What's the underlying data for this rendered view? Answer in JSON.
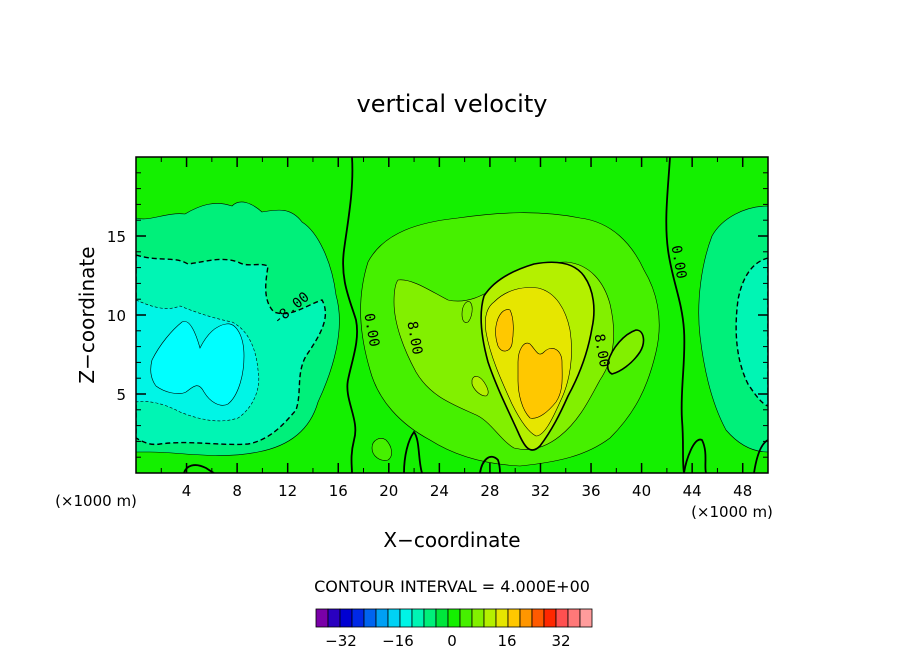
{
  "chart_data": {
    "type": "contour",
    "title": "vertical velocity",
    "xlabel": "X−coordinate",
    "ylabel": "Z−coordinate",
    "x_unit_left": "(×1000 m)",
    "x_unit_right": "(×1000 m)",
    "xlim": [
      0,
      50
    ],
    "ylim": [
      0,
      20
    ],
    "x_ticks": [
      4,
      8,
      12,
      16,
      20,
      24,
      28,
      32,
      36,
      40,
      44,
      48
    ],
    "y_ticks": [
      5,
      10,
      15
    ],
    "contour_labels": [
      {
        "text": "-8.00",
        "x": 12.5,
        "y": 10.2
      },
      {
        "text": "0.00",
        "x": 18.3,
        "y": 9.0
      },
      {
        "text": "8.00",
        "x": 21.7,
        "y": 8.5
      },
      {
        "text": "8.00",
        "x": 36.5,
        "y": 7.7
      },
      {
        "text": "0.00",
        "x": 42.6,
        "y": 13.3
      }
    ],
    "contour_interval": "CONTOUR INTERVAL = 4.000E+00",
    "colorbar": {
      "tick_labels": [
        "−32",
        "−16",
        "0",
        "16",
        "32"
      ],
      "colors": [
        "#7a00a8",
        "#2a00c0",
        "#0000d2",
        "#0028e6",
        "#0064f0",
        "#00a0f5",
        "#00d2f5",
        "#00f5e6",
        "#00f5b4",
        "#00f07a",
        "#00e63c",
        "#14f000",
        "#46f000",
        "#82f000",
        "#b4f000",
        "#e6e600",
        "#ffc800",
        "#ff9600",
        "#ff5a00",
        "#ff2800",
        "#ff5050",
        "#ff7878",
        "#ff9c9c"
      ]
    },
    "fill_levels": {
      "background": "#14f000",
      "m4": "#00f07a",
      "m8": "#00f5b4",
      "m12": "#00f5e6",
      "m16": "#00ffff",
      "p4": "#46f000",
      "p8": "#82f000",
      "p12": "#b4f000",
      "p16": "#e6e600",
      "p20": "#ffc800"
    }
  }
}
